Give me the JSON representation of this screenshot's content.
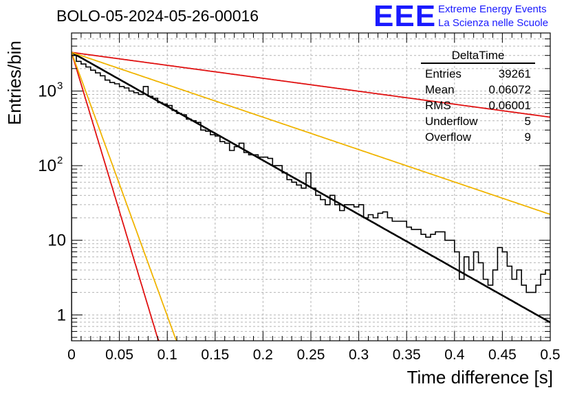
{
  "header": {
    "title": "BOLO-05-2024-05-26-00016",
    "logo_text": "EEE",
    "logo_line1": "Extreme Energy Events",
    "logo_line2": "La Scienza nelle Scuole"
  },
  "stats": {
    "name": "DeltaTime",
    "rows": [
      {
        "label": "Entries",
        "value": "39261"
      },
      {
        "label": "Mean",
        "value": "0.06072"
      },
      {
        "label": "RMS",
        "value": "0.06001"
      },
      {
        "label": "Underflow",
        "value": "5"
      },
      {
        "label": "Overflow",
        "value": "9"
      }
    ]
  },
  "chart_data": {
    "type": "line",
    "title": "BOLO-05-2024-05-26-00016",
    "xlabel": "Time difference [s]",
    "ylabel": "Entries/bin",
    "xlim": [
      0,
      0.5
    ],
    "ylim": [
      0.45,
      6000
    ],
    "yscale": "log",
    "grid": true,
    "xticks": [
      {
        "value": 0,
        "label": "0"
      },
      {
        "value": 0.05,
        "label": "0.05"
      },
      {
        "value": 0.1,
        "label": "0.1"
      },
      {
        "value": 0.15,
        "label": "0.15"
      },
      {
        "value": 0.2,
        "label": "0.2"
      },
      {
        "value": 0.25,
        "label": "0.25"
      },
      {
        "value": 0.3,
        "label": "0.3"
      },
      {
        "value": 0.35,
        "label": "0.35"
      },
      {
        "value": 0.4,
        "label": "0.4"
      },
      {
        "value": 0.45,
        "label": "0.45"
      },
      {
        "value": 0.5,
        "label": "0.5"
      }
    ],
    "yticks": [
      {
        "value": 1,
        "label": "1"
      },
      {
        "value": 10,
        "label": "10"
      },
      {
        "value": 100,
        "label": "10",
        "exp": "2"
      },
      {
        "value": 1000,
        "label": "10",
        "exp": "3"
      }
    ],
    "histogram": {
      "name": "DeltaTime",
      "color": "#000000",
      "bin_width": 0.005,
      "values": [
        3000,
        2500,
        2300,
        2100,
        1900,
        1750,
        1600,
        1400,
        1300,
        1250,
        1150,
        1100,
        1000,
        950,
        900,
        1150,
        850,
        800,
        700,
        670,
        640,
        550,
        500,
        480,
        420,
        400,
        380,
        300,
        290,
        260,
        250,
        210,
        200,
        160,
        180,
        200,
        150,
        140,
        140,
        130,
        130,
        125,
        100,
        100,
        80,
        65,
        60,
        55,
        50,
        80,
        50,
        40,
        35,
        30,
        40,
        30,
        25,
        30,
        30,
        28,
        30,
        20,
        22,
        20,
        23,
        24,
        20,
        18,
        18,
        18,
        15,
        14,
        14,
        12,
        11,
        12,
        13,
        13,
        10,
        10,
        7,
        3,
        6,
        4,
        7,
        5,
        3,
        2.5,
        4,
        8,
        7,
        4.5,
        3,
        4,
        2.5,
        2,
        2,
        2.5,
        3.5,
        4,
        3,
        2.5,
        1.5,
        1.2,
        2,
        2,
        1.3,
        1.1,
        1,
        0.4,
        1,
        0.4,
        0.4,
        0.4,
        1,
        0.7,
        1.3,
        0.8,
        0.4,
        0.4,
        0.4,
        0.4,
        0.4
      ]
    },
    "series": [
      {
        "name": "Fit",
        "color": "#000000",
        "width": 2.6,
        "a": 3300,
        "tau": 0.06
      },
      {
        "name": "Slow fit limit",
        "color": "#e01010",
        "width": 1.8,
        "a": 3300,
        "tau": 0.25
      },
      {
        "name": "Slow fit range",
        "color": "#f0b400",
        "width": 1.8,
        "a": 3300,
        "tau": 0.1
      },
      {
        "name": "Fast fit limit",
        "color": "#e01010",
        "width": 1.8,
        "a": 3300,
        "tau": 0.0102
      },
      {
        "name": "Fast fit range",
        "color": "#f0b400",
        "width": 1.8,
        "a": 3300,
        "tau": 0.0123
      }
    ]
  }
}
